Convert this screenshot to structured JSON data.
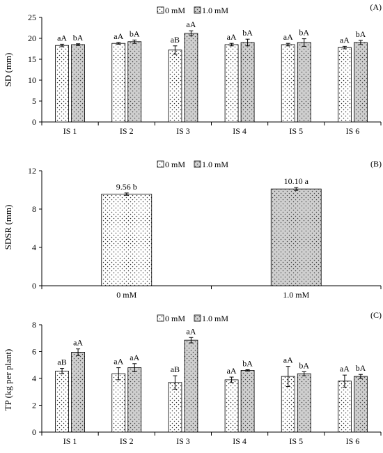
{
  "chart_data": [
    {
      "panel": "(A)",
      "type": "bar",
      "ylabel": "SD (mm)",
      "ylim": [
        0,
        25
      ],
      "yticks": [
        0,
        5,
        10,
        15,
        20,
        25
      ],
      "categories": [
        "IS 1",
        "IS 2",
        "IS 3",
        "IS 4",
        "IS 5",
        "IS 6"
      ],
      "legend": {
        "placement": "top-center",
        "entries": [
          "0 mM",
          "1.0 mM"
        ]
      },
      "series": [
        {
          "name": "0 mM",
          "pattern": "white-dots",
          "values": [
            18.3,
            18.8,
            17.2,
            18.5,
            18.5,
            17.8
          ],
          "errors": [
            0.3,
            0.2,
            1.0,
            0.3,
            0.3,
            0.3
          ],
          "labels": [
            "aA",
            "aA",
            "aB",
            "aA",
            "aA",
            "aA"
          ]
        },
        {
          "name": "1.0 mM",
          "pattern": "gray-dots",
          "values": [
            18.5,
            19.2,
            21.2,
            19.0,
            19.0,
            19.0
          ],
          "errors": [
            0.2,
            0.4,
            0.6,
            0.8,
            0.9,
            0.5
          ],
          "labels": [
            "bA",
            "bA",
            "aA",
            "bA",
            "bA",
            "bA"
          ]
        }
      ]
    },
    {
      "panel": "(B)",
      "type": "bar",
      "ylabel": "SDSR (mm)",
      "ylim": [
        0,
        12
      ],
      "yticks": [
        0,
        4,
        8,
        12
      ],
      "categories": [
        "0 mM",
        "1.0 mM"
      ],
      "legend": {
        "placement": "top-center",
        "entries": [
          "0 mM",
          "1.0 mM"
        ]
      },
      "series": [
        {
          "name": "",
          "patterns": [
            "white-dots",
            "gray-dots"
          ],
          "values": [
            9.56,
            10.1
          ],
          "errors": [
            0.12,
            0.15
          ],
          "labels": [
            "9.56 b",
            "10.10 a"
          ]
        }
      ]
    },
    {
      "panel": "(C)",
      "type": "bar",
      "ylabel": "TP (kg per plant)",
      "ylim": [
        0,
        8
      ],
      "yticks": [
        0,
        2,
        4,
        6,
        8
      ],
      "categories": [
        "IS 1",
        "IS 2",
        "IS 3",
        "IS 4",
        "IS 5",
        "IS 6"
      ],
      "legend": {
        "placement": "top-center",
        "entries": [
          "0 mM",
          "1.0 mM"
        ]
      },
      "series": [
        {
          "name": "0 mM",
          "pattern": "white-dots",
          "values": [
            4.55,
            4.35,
            3.7,
            3.9,
            4.15,
            3.8
          ],
          "errors": [
            0.2,
            0.45,
            0.5,
            0.2,
            0.75,
            0.45
          ],
          "labels": [
            "aB",
            "aA",
            "aB",
            "aA",
            "aA",
            "aA"
          ]
        },
        {
          "name": "1.0 mM",
          "pattern": "gray-dots",
          "values": [
            5.95,
            4.8,
            6.85,
            4.6,
            4.35,
            4.15
          ],
          "errors": [
            0.25,
            0.3,
            0.2,
            0.05,
            0.15,
            0.15
          ],
          "labels": [
            "aA",
            "aA",
            "aA",
            "bA",
            "bA",
            "bA"
          ]
        }
      ]
    }
  ]
}
